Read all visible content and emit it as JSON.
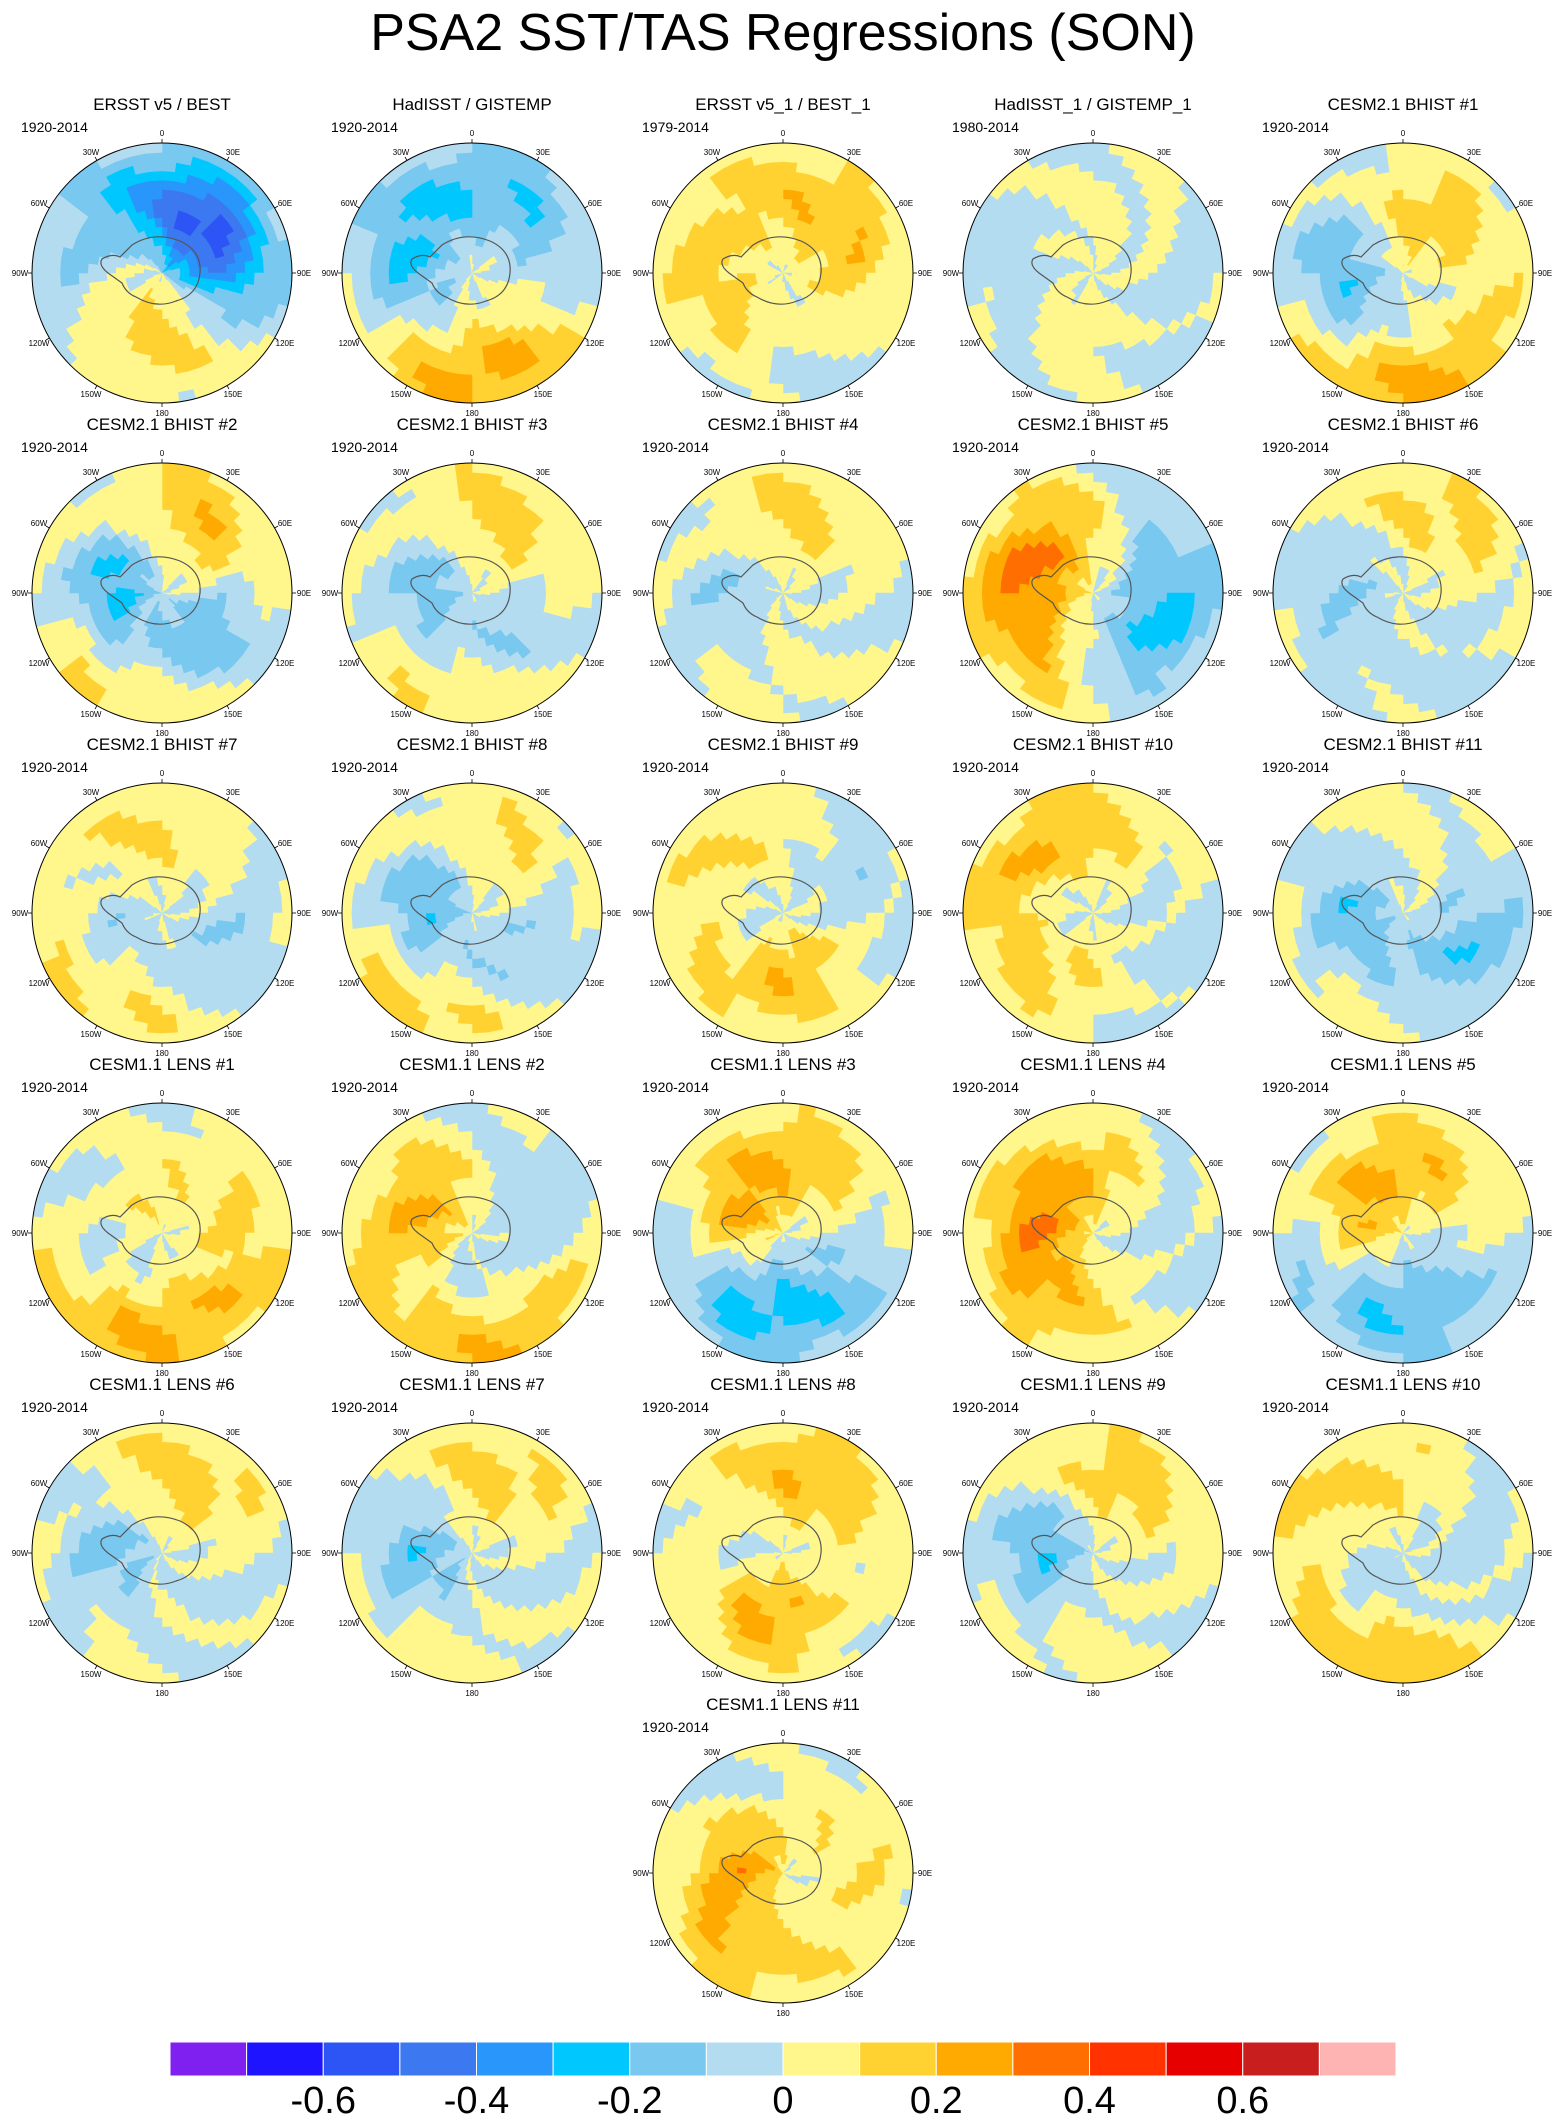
{
  "title": "PSA2 SST/TAS Regressions (SON)",
  "lon_labels": [
    "0",
    "30E",
    "60E",
    "90E",
    "120E",
    "150E",
    "180",
    "150W",
    "120W",
    "90W",
    "60W",
    "30W"
  ],
  "colorbar": {
    "labels": [
      "-0.6",
      "-0.4",
      "-0.2",
      "0",
      "0.2",
      "0.4",
      "0.6"
    ],
    "colors": [
      "#8020f0",
      "#1e14ff",
      "#2d55f5",
      "#3c78f0",
      "#2896fa",
      "#00c8ff",
      "#78c8f0",
      "#b4dcf0",
      "#fff68c",
      "#ffd232",
      "#ffaa00",
      "#ff6e00",
      "#ff3200",
      "#e60000",
      "#c81e1e",
      "#ffb4b4"
    ]
  },
  "panels": [
    {
      "title": "ERSST v5 / BEST",
      "period": "1920-2014",
      "pattern": [
        [
          40,
          0.55,
          -0.4
        ],
        [
          195,
          0.55,
          0.25
        ],
        [
          60,
          0.3,
          -0.2
        ],
        [
          250,
          0.65,
          -0.15
        ]
      ]
    },
    {
      "title": "HadISST / GISTEMP",
      "period": "1920-2014",
      "pattern": [
        [
          180,
          0.75,
          0.3
        ],
        [
          60,
          0.7,
          -0.15
        ],
        [
          260,
          0.55,
          -0.2
        ],
        [
          330,
          0.6,
          -0.1
        ]
      ]
    },
    {
      "title": "ERSST v5_1 / BEST_1",
      "period": "1979-2014",
      "pattern": [
        [
          180,
          0.7,
          -0.15
        ],
        [
          230,
          0.6,
          0.2
        ],
        [
          80,
          0.55,
          0.15
        ],
        [
          0,
          0.6,
          0.1
        ]
      ]
    },
    {
      "title": "HadISST_1 / GISTEMP_1",
      "period": "1980-2014",
      "pattern": [
        [
          90,
          0.6,
          -0.1
        ],
        [
          270,
          0.6,
          -0.1
        ],
        [
          200,
          0.5,
          0.1
        ],
        [
          20,
          0.5,
          0.1
        ]
      ]
    },
    {
      "title": "CESM2.1 BHIST #1",
      "period": "1920-2014",
      "pattern": [
        [
          180,
          0.8,
          0.3
        ],
        [
          260,
          0.55,
          -0.25
        ],
        [
          30,
          0.5,
          0.2
        ],
        [
          110,
          0.6,
          -0.1
        ]
      ]
    },
    {
      "title": "CESM2.1 BHIST #2",
      "period": "1920-2014",
      "pattern": [
        [
          200,
          0.7,
          0.25
        ],
        [
          280,
          0.45,
          -0.3
        ],
        [
          30,
          0.6,
          0.25
        ],
        [
          140,
          0.55,
          -0.3
        ]
      ]
    },
    {
      "title": "CESM2.1 BHIST #3",
      "period": "1920-2014",
      "pattern": [
        [
          190,
          0.7,
          0.2
        ],
        [
          280,
          0.45,
          -0.2
        ],
        [
          20,
          0.6,
          0.2
        ],
        [
          140,
          0.55,
          -0.2
        ]
      ]
    },
    {
      "title": "CESM2.1 BHIST #4",
      "period": "1920-2014",
      "pattern": [
        [
          10,
          0.6,
          0.2
        ],
        [
          270,
          0.5,
          -0.15
        ],
        [
          180,
          0.6,
          0.1
        ],
        [
          90,
          0.6,
          -0.1
        ]
      ]
    },
    {
      "title": "CESM2.1 BHIST #5",
      "period": "1920-2014",
      "pattern": [
        [
          200,
          0.65,
          0.25
        ],
        [
          300,
          0.5,
          0.3
        ],
        [
          150,
          0.6,
          -0.3
        ],
        [
          60,
          0.6,
          -0.1
        ]
      ]
    },
    {
      "title": "CESM2.1 BHIST #6",
      "period": "1920-2014",
      "pattern": [
        [
          20,
          0.65,
          0.15
        ],
        [
          270,
          0.5,
          -0.15
        ],
        [
          150,
          0.6,
          -0.1
        ],
        [
          200,
          0.5,
          0.1
        ]
      ]
    },
    {
      "title": "CESM2.1 BHIST #7",
      "period": "1920-2014",
      "pattern": [
        [
          210,
          0.7,
          0.25
        ],
        [
          270,
          0.55,
          -0.25
        ],
        [
          330,
          0.6,
          0.2
        ],
        [
          140,
          0.6,
          -0.15
        ]
      ]
    },
    {
      "title": "CESM2.1 BHIST #8",
      "period": "1920-2014",
      "pattern": [
        [
          200,
          0.75,
          0.25
        ],
        [
          280,
          0.45,
          -0.25
        ],
        [
          20,
          0.6,
          0.15
        ],
        [
          140,
          0.6,
          -0.2
        ]
      ]
    },
    {
      "title": "CESM2.1 BHIST #9",
      "period": "1920-2014",
      "pattern": [
        [
          190,
          0.5,
          0.25
        ],
        [
          310,
          0.55,
          0.2
        ],
        [
          260,
          0.4,
          -0.2
        ],
        [
          60,
          0.6,
          -0.1
        ]
      ]
    },
    {
      "title": "CESM2.1 BHIST #10",
      "period": "1920-2014",
      "pattern": [
        [
          200,
          0.55,
          0.25
        ],
        [
          320,
          0.6,
          0.25
        ],
        [
          150,
          0.65,
          -0.15
        ],
        [
          270,
          0.4,
          -0.15
        ]
      ]
    },
    {
      "title": "CESM2.1 BHIST #11",
      "period": "1920-2014",
      "pattern": [
        [
          200,
          0.7,
          0.2
        ],
        [
          275,
          0.5,
          -0.3
        ],
        [
          330,
          0.6,
          0.15
        ],
        [
          140,
          0.6,
          -0.25
        ]
      ]
    },
    {
      "title": "CESM1.1 LENS #1",
      "period": "1920-2014",
      "pattern": [
        [
          210,
          0.75,
          0.3
        ],
        [
          260,
          0.55,
          -0.3
        ],
        [
          300,
          0.4,
          0.2
        ],
        [
          100,
          0.6,
          0.1
        ]
      ]
    },
    {
      "title": "CESM1.1 LENS #2",
      "period": "1920-2014",
      "pattern": [
        [
          170,
          0.8,
          0.25
        ],
        [
          290,
          0.45,
          0.25
        ],
        [
          200,
          0.5,
          -0.15
        ],
        [
          60,
          0.6,
          -0.1
        ]
      ]
    },
    {
      "title": "CESM1.1 LENS #3",
      "period": "1920-2014",
      "pattern": [
        [
          210,
          0.6,
          -0.25
        ],
        [
          290,
          0.4,
          0.25
        ],
        [
          30,
          0.6,
          0.15
        ],
        [
          120,
          0.6,
          -0.1
        ]
      ]
    },
    {
      "title": "CESM1.1 LENS #4",
      "period": "1920-2014",
      "pattern": [
        [
          290,
          0.4,
          0.25
        ],
        [
          200,
          0.6,
          0.15
        ],
        [
          100,
          0.6,
          -0.1
        ],
        [
          20,
          0.5,
          0.1
        ]
      ]
    },
    {
      "title": "CESM1.1 LENS #5",
      "period": "1920-2014",
      "pattern": [
        [
          290,
          0.4,
          0.25
        ],
        [
          220,
          0.6,
          -0.2
        ],
        [
          40,
          0.6,
          0.15
        ],
        [
          130,
          0.6,
          -0.1
        ]
      ]
    },
    {
      "title": "CESM1.1 LENS #6",
      "period": "1920-2014",
      "pattern": [
        [
          20,
          0.6,
          0.2
        ],
        [
          270,
          0.45,
          -0.2
        ],
        [
          200,
          0.6,
          0.1
        ],
        [
          120,
          0.6,
          -0.1
        ]
      ]
    },
    {
      "title": "CESM1.1 LENS #7",
      "period": "1920-2014",
      "pattern": [
        [
          10,
          0.6,
          0.2
        ],
        [
          270,
          0.5,
          -0.25
        ],
        [
          200,
          0.7,
          0.15
        ],
        [
          120,
          0.6,
          -0.1
        ]
      ]
    },
    {
      "title": "CESM1.1 LENS #8",
      "period": "1920-2014",
      "pattern": [
        [
          200,
          0.5,
          0.3
        ],
        [
          20,
          0.6,
          0.25
        ],
        [
          270,
          0.45,
          -0.15
        ],
        [
          100,
          0.6,
          -0.1
        ]
      ]
    },
    {
      "title": "CESM1.1 LENS #9",
      "period": "1920-2014",
      "pattern": [
        [
          20,
          0.6,
          0.2
        ],
        [
          270,
          0.45,
          -0.25
        ],
        [
          190,
          0.6,
          0.15
        ],
        [
          120,
          0.6,
          -0.1
        ]
      ]
    },
    {
      "title": "CESM1.1 LENS #10",
      "period": "1920-2014",
      "pattern": [
        [
          200,
          0.75,
          0.25
        ],
        [
          320,
          0.6,
          0.2
        ],
        [
          250,
          0.5,
          -0.2
        ],
        [
          100,
          0.6,
          -0.1
        ]
      ]
    },
    {
      "title": "CESM1.1 LENS #11",
      "period": "1920-2014",
      "pattern": [
        [
          320,
          0.6,
          -0.15
        ],
        [
          290,
          0.35,
          0.3
        ],
        [
          220,
          0.7,
          0.15
        ],
        [
          60,
          0.6,
          0.1
        ]
      ]
    }
  ]
}
